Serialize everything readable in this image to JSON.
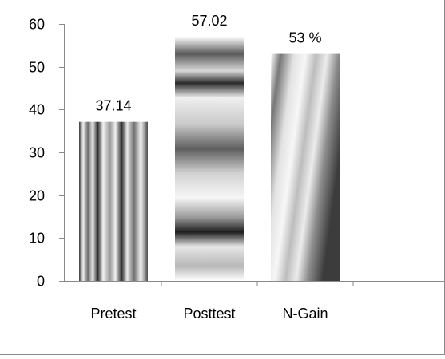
{
  "chart_data": {
    "type": "bar",
    "title": "",
    "xlabel": "",
    "ylabel": "",
    "ylim": [
      0,
      60
    ],
    "yticks": [
      "0",
      "10",
      "20",
      "30",
      "40",
      "50",
      "60"
    ],
    "categories": [
      "Pretest",
      "Posttest",
      "N-Gain"
    ],
    "values": [
      37.14,
      57.02,
      53
    ],
    "data_labels": [
      "37.14",
      "57.02",
      "53 %"
    ],
    "grid": false,
    "legend": "none",
    "bar_fills": [
      "vertical-stripes",
      "horizontal-bands",
      "diagonal-stripes"
    ]
  }
}
